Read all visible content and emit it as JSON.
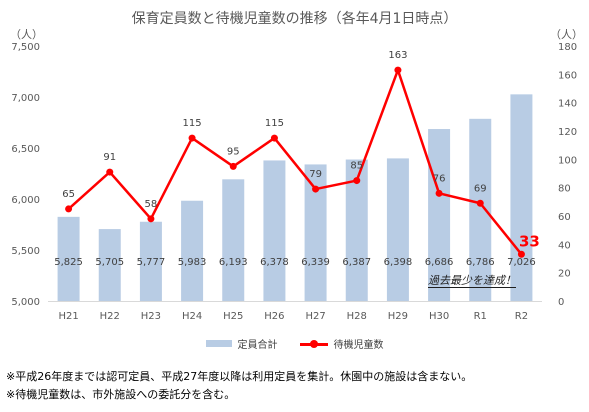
{
  "chart_data": {
    "type": "bar+line",
    "title": "保育定員数と待機児童数の推移（各年4月1日時点）",
    "y_left_unit": "（人）",
    "y_right_unit": "（人）",
    "categories": [
      "H21",
      "H22",
      "H23",
      "H24",
      "H25",
      "H26",
      "H27",
      "H28",
      "H29",
      "H30",
      "R1",
      "R2"
    ],
    "series": [
      {
        "name": "定員合計",
        "type": "bar",
        "axis": "left",
        "color": "#b8cce4",
        "values": [
          5825,
          5705,
          5777,
          5983,
          6193,
          6378,
          6339,
          6387,
          6398,
          6686,
          6786,
          7026
        ],
        "labels": [
          "5,825",
          "5,705",
          "5,777",
          "5,983",
          "6,193",
          "6,378",
          "6,339",
          "6,387",
          "6,398",
          "6,686",
          "6,786",
          "7,026"
        ]
      },
      {
        "name": "待機児童数",
        "type": "line",
        "axis": "right",
        "color": "#ff0000",
        "values": [
          65,
          91,
          58,
          115,
          95,
          115,
          79,
          85,
          163,
          76,
          69,
          33
        ],
        "labels": [
          "65",
          "91",
          "58",
          "115",
          "95",
          "115",
          "79",
          "85",
          "163",
          "76",
          "69",
          "33"
        ]
      }
    ],
    "y_left_range": [
      5000,
      7500
    ],
    "y_left_ticks": [
      "5,000",
      "5,500",
      "6,000",
      "6,500",
      "7,000",
      "7,500"
    ],
    "y_right_range": [
      0,
      180
    ],
    "y_right_ticks": [
      "0",
      "20",
      "40",
      "60",
      "80",
      "100",
      "120",
      "140",
      "160",
      "180"
    ],
    "grid": false,
    "legend_position": "bottom",
    "annotation": "過去最少を達成！"
  },
  "notes": [
    "※平成26年度までは認可定員、平成27年度以降は利用定員を集計。休園中の施設は含まない。",
    "※待機児童数は、市外施設への委託分を含む。"
  ]
}
